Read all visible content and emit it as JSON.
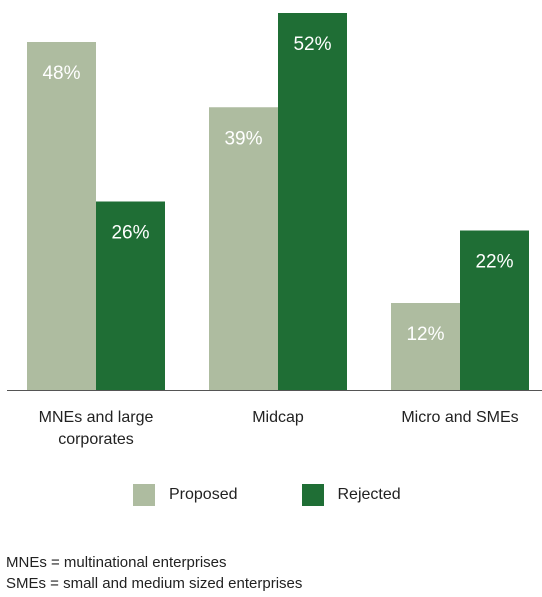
{
  "chart_data": {
    "type": "bar",
    "categories": [
      "MNEs and large corporates",
      "Midcap",
      "Micro and SMEs"
    ],
    "category_label_lines": [
      [
        "MNEs and large",
        "corporates"
      ],
      [
        "Midcap"
      ],
      [
        "Micro and SMEs"
      ]
    ],
    "series": [
      {
        "name": "Proposed",
        "values": [
          48,
          39,
          12
        ],
        "labels": [
          "48%",
          "39%",
          "12%"
        ],
        "color": "#aebca0"
      },
      {
        "name": "Rejected",
        "values": [
          26,
          52,
          22
        ],
        "labels": [
          "26%",
          "52%",
          "22%"
        ],
        "color": "#1f6e35"
      }
    ],
    "ylim": [
      0,
      52
    ],
    "grid": false,
    "legend_position": "bottom",
    "title": "",
    "xlabel": "",
    "ylabel": ""
  },
  "legend": {
    "proposed_label": "Proposed",
    "rejected_label": "Rejected",
    "proposed_color": "#aebca0",
    "rejected_color": "#1f6e35"
  },
  "footnotes": {
    "line1": "MNEs = multinational enterprises",
    "line2": "SMEs = small and medium sized enterprises"
  }
}
